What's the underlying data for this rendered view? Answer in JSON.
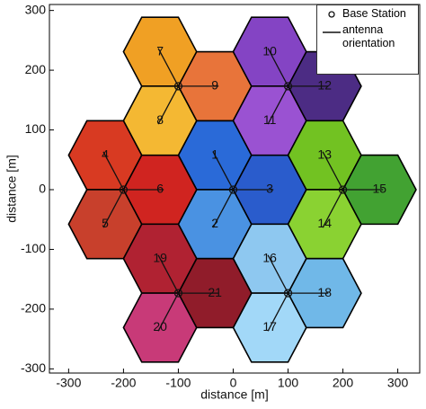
{
  "chart_data": {
    "type": "scatter",
    "xlabel": "distance [m]",
    "ylabel": "distance [m]",
    "xlim": [
      -335,
      340
    ],
    "ylim": [
      -307,
      310
    ],
    "xticks": [
      -300,
      -200,
      -100,
      0,
      100,
      200,
      300
    ],
    "yticks": [
      -300,
      -200,
      -100,
      0,
      100,
      200,
      300
    ],
    "series": [
      {
        "name": "Base Station",
        "color": "#111111",
        "x": [
          -100,
          100,
          -200,
          0,
          200,
          -100,
          100
        ],
        "y": [
          173.2,
          173.2,
          0,
          0,
          0,
          -173.2,
          -173.2
        ]
      }
    ],
    "orientation_name": "antenna orientation",
    "cells": [
      {
        "label": "1",
        "x": -33.3,
        "y": 57.7,
        "color": "#2a6ad8"
      },
      {
        "label": "2",
        "x": -33.3,
        "y": -57.7,
        "color": "#4a92e2"
      },
      {
        "label": "3",
        "x": 66.7,
        "y": 0,
        "color": "#2a5ccc"
      },
      {
        "label": "4",
        "x": -233.3,
        "y": 57.7,
        "color": "#d83a22"
      },
      {
        "label": "5",
        "x": -233.3,
        "y": -57.7,
        "color": "#c8402c"
      },
      {
        "label": "6",
        "x": -133.3,
        "y": 0,
        "color": "#d02420"
      },
      {
        "label": "7",
        "x": -133.3,
        "y": 230.9,
        "color": "#f0a024"
      },
      {
        "label": "8",
        "x": -133.3,
        "y": 115.5,
        "color": "#f4b833"
      },
      {
        "label": "9",
        "x": -33.3,
        "y": 173.2,
        "color": "#e8743a"
      },
      {
        "label": "10",
        "x": 66.7,
        "y": 230.9,
        "color": "#8444c4"
      },
      {
        "label": "11",
        "x": 66.7,
        "y": 115.5,
        "color": "#9a52d2"
      },
      {
        "label": "12",
        "x": 166.7,
        "y": 173.2,
        "color": "#4c2c84"
      },
      {
        "label": "13",
        "x": 166.7,
        "y": 57.7,
        "color": "#72c222"
      },
      {
        "label": "14",
        "x": 166.7,
        "y": -57.7,
        "color": "#8ad232"
      },
      {
        "label": "15",
        "x": 266.7,
        "y": 0,
        "color": "#42a232"
      },
      {
        "label": "16",
        "x": 66.7,
        "y": -115.5,
        "color": "#8ec8f0"
      },
      {
        "label": "17",
        "x": 66.7,
        "y": -230.9,
        "color": "#a2d8f8"
      },
      {
        "label": "18",
        "x": 166.7,
        "y": -173.2,
        "color": "#70b8e8"
      },
      {
        "label": "19",
        "x": -133.3,
        "y": -115.5,
        "color": "#b02232"
      },
      {
        "label": "20",
        "x": -133.3,
        "y": -230.9,
        "color": "#c83a78"
      },
      {
        "label": "21",
        "x": -33.3,
        "y": -173.2,
        "color": "#901c2a"
      }
    ]
  }
}
